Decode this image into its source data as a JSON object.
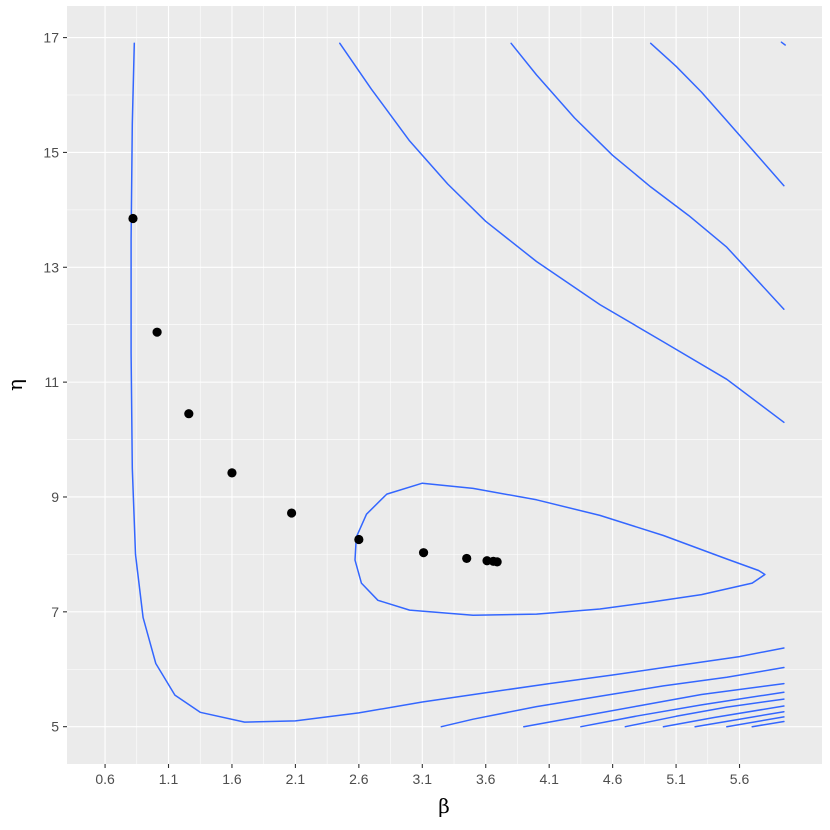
{
  "chart_data": {
    "type": "scatter",
    "title": "",
    "xlabel": "β",
    "ylabel": "η",
    "xlim": [
      0.3,
      6.25
    ],
    "ylim": [
      4.35,
      17.55
    ],
    "x_ticks": [
      0.6,
      1.1,
      1.6,
      2.1,
      2.6,
      3.1,
      3.6,
      4.1,
      4.6,
      5.1,
      5.6
    ],
    "x_tick_labels": [
      "0.6",
      "1.1",
      "1.6",
      "2.1",
      "2.6",
      "3.1",
      "3.6",
      "4.1",
      "4.6",
      "5.1",
      "5.6"
    ],
    "y_ticks": [
      5,
      7,
      9,
      11,
      13,
      15,
      17
    ],
    "y_tick_labels": [
      "5",
      "7",
      "9",
      "11",
      "13",
      "15",
      "17"
    ],
    "grid": true,
    "legend": "none",
    "colors": {
      "panel": "#ebebeb",
      "grid": "#ffffff",
      "contour": "#3366ff",
      "points": "#000000"
    },
    "points": [
      {
        "x": 0.82,
        "y": 13.85
      },
      {
        "x": 1.01,
        "y": 11.87
      },
      {
        "x": 1.26,
        "y": 10.45
      },
      {
        "x": 1.6,
        "y": 9.42
      },
      {
        "x": 2.07,
        "y": 8.72
      },
      {
        "x": 2.6,
        "y": 8.26
      },
      {
        "x": 3.11,
        "y": 8.03
      },
      {
        "x": 3.45,
        "y": 7.93
      },
      {
        "x": 3.61,
        "y": 7.89
      },
      {
        "x": 3.66,
        "y": 7.88
      },
      {
        "x": 3.69,
        "y": 7.87
      }
    ],
    "contours": [
      {
        "id": "outer-u",
        "points": [
          [
            0.83,
            16.9
          ],
          [
            0.815,
            15.5
          ],
          [
            0.805,
            13.5
          ],
          [
            0.805,
            11.5
          ],
          [
            0.815,
            9.5
          ],
          [
            0.84,
            8.0
          ],
          [
            0.9,
            6.9
          ],
          [
            1.0,
            6.1
          ],
          [
            1.15,
            5.55
          ],
          [
            1.35,
            5.25
          ],
          [
            1.7,
            5.08
          ],
          [
            2.1,
            5.1
          ],
          [
            2.6,
            5.24
          ],
          [
            3.1,
            5.43
          ],
          [
            3.6,
            5.59
          ],
          [
            4.1,
            5.75
          ],
          [
            4.6,
            5.9
          ],
          [
            5.1,
            6.06
          ],
          [
            5.6,
            6.22
          ],
          [
            5.95,
            6.37
          ]
        ]
      },
      {
        "id": "inner-loop",
        "points": [
          [
            3.1,
            9.24
          ],
          [
            3.5,
            9.15
          ],
          [
            4.0,
            8.95
          ],
          [
            4.5,
            8.68
          ],
          [
            5.0,
            8.33
          ],
          [
            5.5,
            7.92
          ],
          [
            5.75,
            7.72
          ],
          [
            5.8,
            7.65
          ],
          [
            5.7,
            7.5
          ],
          [
            5.3,
            7.3
          ],
          [
            4.9,
            7.17
          ],
          [
            4.5,
            7.05
          ],
          [
            4.0,
            6.96
          ],
          [
            3.5,
            6.94
          ],
          [
            3.0,
            7.03
          ],
          [
            2.75,
            7.2
          ],
          [
            2.62,
            7.5
          ],
          [
            2.57,
            7.9
          ],
          [
            2.58,
            8.3
          ],
          [
            2.66,
            8.7
          ],
          [
            2.82,
            9.05
          ],
          [
            3.1,
            9.24
          ]
        ]
      },
      {
        "id": "top-1",
        "points": [
          [
            2.45,
            16.9
          ],
          [
            2.7,
            16.1
          ],
          [
            3.0,
            15.2
          ],
          [
            3.3,
            14.45
          ],
          [
            3.6,
            13.8
          ],
          [
            4.0,
            13.1
          ],
          [
            4.5,
            12.35
          ],
          [
            5.0,
            11.7
          ],
          [
            5.5,
            11.05
          ],
          [
            5.95,
            10.3
          ]
        ]
      },
      {
        "id": "top-2",
        "points": [
          [
            3.8,
            16.9
          ],
          [
            4.0,
            16.35
          ],
          [
            4.3,
            15.6
          ],
          [
            4.6,
            14.95
          ],
          [
            4.9,
            14.4
          ],
          [
            5.2,
            13.9
          ],
          [
            5.5,
            13.35
          ],
          [
            5.95,
            12.27
          ]
        ]
      },
      {
        "id": "top-3",
        "points": [
          [
            4.9,
            16.9
          ],
          [
            5.1,
            16.5
          ],
          [
            5.3,
            16.05
          ],
          [
            5.5,
            15.55
          ],
          [
            5.7,
            15.05
          ],
          [
            5.95,
            14.42
          ]
        ]
      },
      {
        "id": "top-4",
        "points": [
          [
            5.93,
            16.92
          ],
          [
            5.96,
            16.87
          ]
        ]
      },
      {
        "id": "bottom-1",
        "points": [
          [
            3.25,
            5.0
          ],
          [
            3.5,
            5.13
          ],
          [
            4.0,
            5.35
          ],
          [
            4.5,
            5.53
          ],
          [
            5.0,
            5.71
          ],
          [
            5.5,
            5.86
          ],
          [
            5.95,
            6.03
          ]
        ]
      },
      {
        "id": "bottom-2",
        "points": [
          [
            3.9,
            5.0
          ],
          [
            4.3,
            5.16
          ],
          [
            4.8,
            5.36
          ],
          [
            5.3,
            5.56
          ],
          [
            5.95,
            5.75
          ]
        ]
      },
      {
        "id": "bottom-3",
        "points": [
          [
            4.35,
            5.0
          ],
          [
            4.8,
            5.19
          ],
          [
            5.3,
            5.38
          ],
          [
            5.95,
            5.6
          ]
        ]
      },
      {
        "id": "bottom-4",
        "points": [
          [
            4.7,
            5.0
          ],
          [
            5.1,
            5.18
          ],
          [
            5.5,
            5.34
          ],
          [
            5.95,
            5.48
          ]
        ]
      },
      {
        "id": "bottom-5",
        "points": [
          [
            5.0,
            5.0
          ],
          [
            5.4,
            5.16
          ],
          [
            5.95,
            5.36
          ]
        ]
      },
      {
        "id": "bottom-6",
        "points": [
          [
            5.25,
            5.0
          ],
          [
            5.6,
            5.13
          ],
          [
            5.95,
            5.26
          ]
        ]
      },
      {
        "id": "bottom-7",
        "points": [
          [
            5.5,
            5.0
          ],
          [
            5.95,
            5.17
          ]
        ]
      },
      {
        "id": "bottom-8",
        "points": [
          [
            5.7,
            5.0
          ],
          [
            5.95,
            5.09
          ]
        ]
      }
    ]
  }
}
